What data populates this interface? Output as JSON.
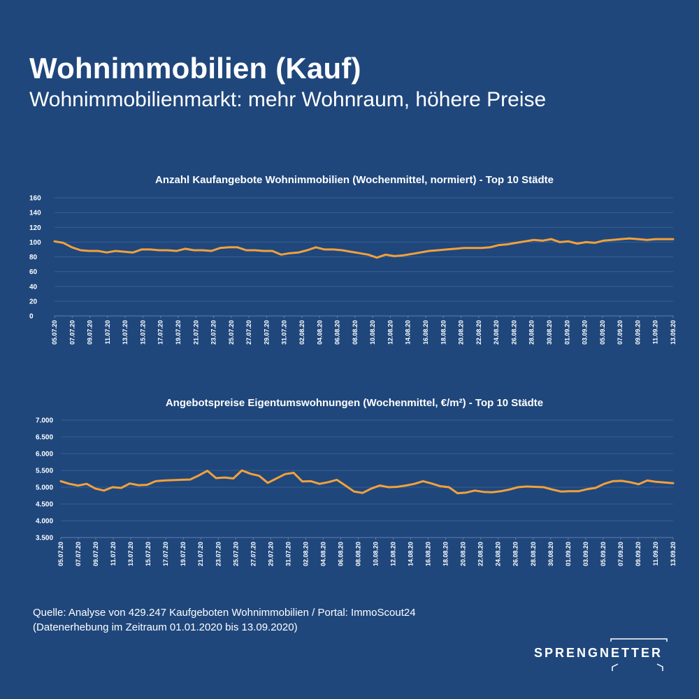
{
  "header": {
    "title": "Wohnimmobilien (Kauf)",
    "subtitle": "Wohnimmobilienmarkt: mehr Wohnraum, höhere Preise"
  },
  "colors": {
    "background": "#1f477c",
    "series": "#f2a13b",
    "text": "#ffffff"
  },
  "chart_data": [
    {
      "type": "line",
      "title": "Anzahl Kaufangebote Wohnimmobilien (Wochenmittel, normiert) - Top 10 Städte",
      "xlabel": "",
      "ylabel": "",
      "ylim": [
        0,
        160
      ],
      "yticks": [
        "0",
        "20",
        "40",
        "60",
        "80",
        "100",
        "120",
        "140",
        "160"
      ],
      "x_tick_labels": [
        "05.07.20",
        "07.07.20",
        "09.07.20",
        "11.07.20",
        "13.07.20",
        "15.07.20",
        "17.07.20",
        "19.07.20",
        "21.07.20",
        "23.07.20",
        "25.07.20",
        "27.07.20",
        "29.07.20",
        "31.07.20",
        "02.08.20",
        "04.08.20",
        "06.08.20",
        "08.08.20",
        "10.08.20",
        "12.08.20",
        "14.08.20",
        "16.08.20",
        "18.08.20",
        "20.08.20",
        "22.08.20",
        "24.08.20",
        "26.08.20",
        "28.08.20",
        "30.08.20",
        "01.09.20",
        "03.09.20",
        "05.09.20",
        "07.09.20",
        "09.09.20",
        "11.09.20",
        "13.09.20"
      ],
      "grid": true,
      "legend": "none",
      "series": [
        {
          "values": [
            101,
            99,
            93,
            89,
            88,
            88,
            86,
            88,
            87,
            86,
            90,
            90,
            89,
            89,
            88,
            91,
            89,
            89,
            88,
            92,
            93,
            93,
            89,
            89,
            88,
            88,
            83,
            85,
            86,
            89,
            93,
            90,
            90,
            89,
            87,
            85,
            83,
            79,
            83,
            81,
            82,
            84,
            86,
            88,
            89,
            90,
            91,
            92,
            92,
            92,
            93,
            96,
            97,
            99,
            101,
            103,
            102,
            104,
            100,
            101,
            98,
            100,
            99,
            102,
            103,
            104,
            105,
            104,
            103,
            104,
            104,
            104
          ]
        }
      ]
    },
    {
      "type": "line",
      "title": "Angebotspreise Eigentumswohnungen (Wochenmittel, €/m²) - Top 10 Städte",
      "xlabel": "",
      "ylabel": "",
      "ylim": [
        3500,
        7000
      ],
      "yticks": [
        "3.500",
        "4.000",
        "4.500",
        "5.000",
        "5.500",
        "6.000",
        "6.500",
        "7.000"
      ],
      "x_tick_labels": [
        "05.07.20",
        "07.07.20",
        "09.07.20",
        "11.07.20",
        "13.07.20",
        "15.07.20",
        "17.07.20",
        "19.07.20",
        "21.07.20",
        "23.07.20",
        "25.07.20",
        "27.07.20",
        "29.07.20",
        "31.07.20",
        "02.08.20",
        "04.08.20",
        "06.08.20",
        "08.08.20",
        "10.08.20",
        "12.08.20",
        "14.08.20",
        "16.08.20",
        "18.08.20",
        "20.08.20",
        "22.08.20",
        "24.08.20",
        "26.08.20",
        "28.08.20",
        "30.08.20",
        "01.09.20",
        "03.09.20",
        "05.09.20",
        "07.09.20",
        "09.09.20",
        "11.09.20",
        "13.09.20"
      ],
      "grid": true,
      "legend": "none",
      "series": [
        {
          "values": [
            5180,
            5100,
            5050,
            5100,
            4960,
            4900,
            5000,
            4980,
            5110,
            5060,
            5070,
            5180,
            5200,
            5210,
            5220,
            5230,
            5350,
            5490,
            5270,
            5290,
            5260,
            5500,
            5400,
            5340,
            5130,
            5260,
            5390,
            5430,
            5170,
            5180,
            5100,
            5150,
            5220,
            5050,
            4870,
            4830,
            4960,
            5050,
            5000,
            5010,
            5050,
            5100,
            5180,
            5110,
            5030,
            5000,
            4820,
            4840,
            4900,
            4860,
            4850,
            4880,
            4930,
            5000,
            5020,
            5010,
            5000,
            4930,
            4870,
            4880,
            4880,
            4940,
            4980,
            5100,
            5180,
            5190,
            5150,
            5090,
            5200,
            5160,
            5140,
            5120
          ]
        }
      ]
    }
  ],
  "source": {
    "line1": "Quelle: Analyse von 429.247 Kaufgeboten Wohnimmobilien / Portal: ImmoScout24",
    "line2": "(Datenerhebung im Zeitraum 01.01.2020 bis 13.09.2020)"
  },
  "logo": {
    "text": "SPRENGNETTER"
  }
}
